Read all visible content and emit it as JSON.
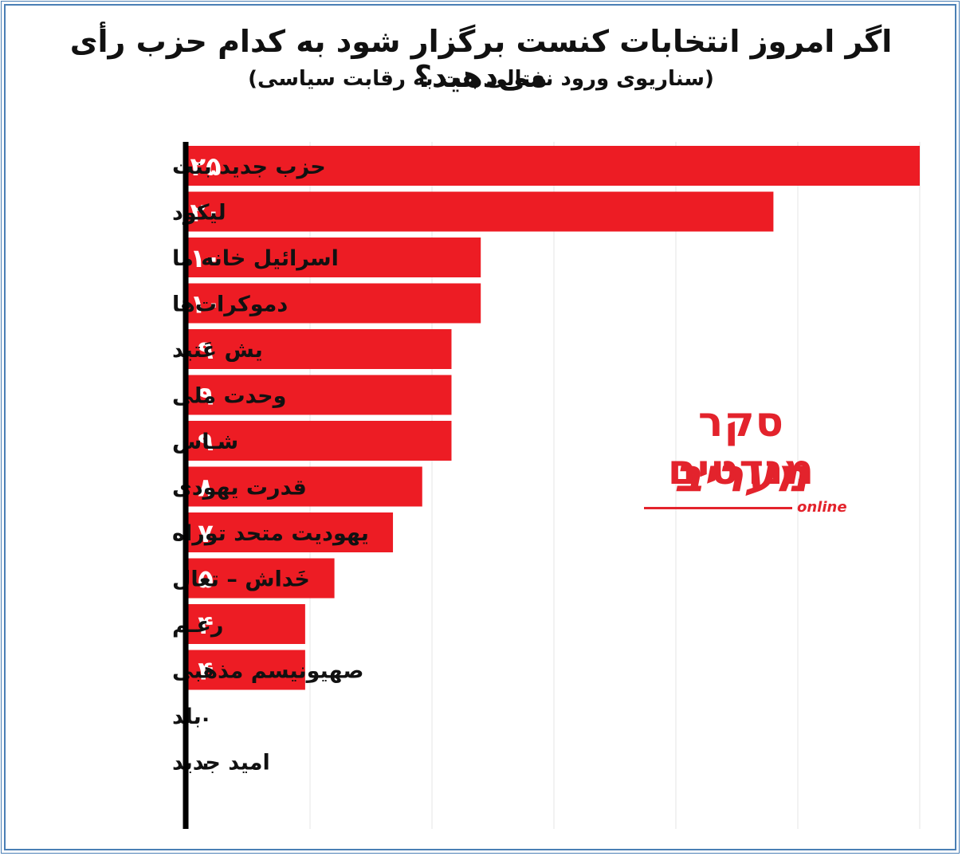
{
  "title": "اگر امروز انتخابات کنست برگزار شود به کدام حزب رأی می‌دهید؟",
  "subtitle": "(سناریوی ورود نفتالی بنت به رقابت سیاسی)",
  "brand": {
    "top": "סקר מנדטים",
    "main": "מעריב",
    "sub": "online"
  },
  "colors": {
    "bar": "#ed1c24",
    "value_on_bar": "#ffffff",
    "value_zero": "#111111",
    "axis": "#000000",
    "grid": "#e4e4e4"
  },
  "chart_data": {
    "type": "bar",
    "orientation": "horizontal",
    "title": "اگر امروز انتخابات کنست برگزار شود به کدام حزب رأی می‌دهید؟",
    "subtitle": "(سناریوی ورود نفتالی بنت به رقابت سیاسی)",
    "categories": [
      "حزب جدید بنت",
      "لیکود",
      "اسرائیل خانه ما",
      "دموکرات‌ها",
      "یش عَتید",
      "وحدت ملی",
      "شـاس",
      "قدرت یهودی",
      "یهودیت متحد توراه",
      "خَداش – تعال",
      "رعـم",
      "صهیونیسم مذهبی",
      "بلد",
      "امید جدید"
    ],
    "values": [
      25,
      20,
      10,
      10,
      9,
      9,
      9,
      8,
      7,
      5,
      4,
      4,
      0,
      0
    ],
    "value_labels": [
      "۲۵",
      "۲۰",
      "۱۰",
      "۱۰",
      "۹",
      "۹",
      "۹",
      "۸",
      "۷",
      "۵",
      "۴",
      "۴",
      "۰",
      "۰"
    ],
    "xlim": [
      0,
      25
    ],
    "grid": true,
    "legend": "none"
  }
}
